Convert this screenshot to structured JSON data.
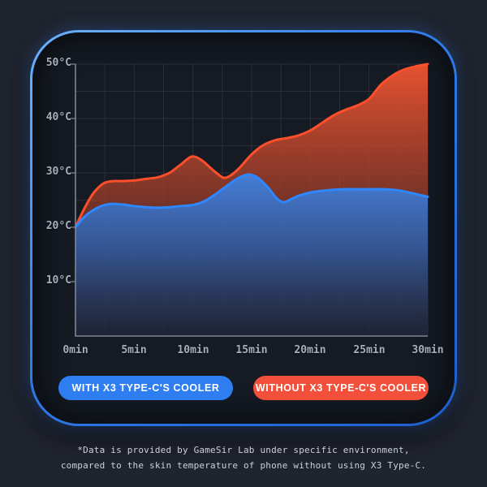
{
  "panel": {
    "border_color": "#2f7ce9",
    "background": "#151a23",
    "page_background": "#20242e"
  },
  "chart_data": {
    "type": "area",
    "title": "",
    "x_axis": {
      "unit": "min",
      "min": 0,
      "max": 30,
      "tick_labels": [
        "0min",
        "5min",
        "10min",
        "15min",
        "20min",
        "25min",
        "30min"
      ],
      "minor_step": 2.5
    },
    "y_axis": {
      "unit": "°C",
      "min": 0,
      "max": 50,
      "tick_labels": [
        "50°C",
        "40°C",
        "30°C",
        "20°C",
        "10°C"
      ],
      "minor_step": 5
    },
    "grid": "on",
    "legend_position": "bottom",
    "series": [
      {
        "name": "WITHOUT X3 TYPE-C'S COOLER",
        "line_color": "#ff4e2b",
        "fill_stops": [
          "rgba(240,84,48,0.96)",
          "rgba(158,62,42,0.72)",
          "rgba(70,34,30,0.45)"
        ],
        "points": [
          [
            0,
            20
          ],
          [
            0.7,
            23.2
          ],
          [
            1.4,
            25.9
          ],
          [
            2,
            27.4
          ],
          [
            2.5,
            28.2
          ],
          [
            3.2,
            28.5
          ],
          [
            4,
            28.5
          ],
          [
            5,
            28.6
          ],
          [
            6,
            28.9
          ],
          [
            7,
            29.2
          ],
          [
            8,
            30
          ],
          [
            9,
            31.6
          ],
          [
            9.9,
            33
          ],
          [
            10.7,
            32.4
          ],
          [
            11.4,
            31.1
          ],
          [
            12,
            30
          ],
          [
            12.6,
            29.1
          ],
          [
            13.2,
            29.5
          ],
          [
            14,
            31
          ],
          [
            15,
            33.4
          ],
          [
            16,
            35.1
          ],
          [
            17,
            36
          ],
          [
            18,
            36.4
          ],
          [
            19,
            36.9
          ],
          [
            20,
            37.8
          ],
          [
            21,
            39.2
          ],
          [
            22,
            40.6
          ],
          [
            23,
            41.6
          ],
          [
            24,
            42.4
          ],
          [
            25,
            43.6
          ],
          [
            26,
            46.2
          ],
          [
            27,
            47.9
          ],
          [
            28,
            49
          ],
          [
            29,
            49.6
          ],
          [
            30,
            50
          ]
        ]
      },
      {
        "name": "WITH X3 TYPE-C'S COOLER",
        "line_color": "#2e87ff",
        "fill_stops": [
          "rgba(66,130,226,0.96)",
          "rgba(44,92,164,0.82)",
          "rgba(22,38,64,0.6)"
        ],
        "points": [
          [
            0,
            20
          ],
          [
            0.7,
            21.8
          ],
          [
            1.4,
            23
          ],
          [
            2.2,
            23.9
          ],
          [
            3,
            24.3
          ],
          [
            4,
            24.2
          ],
          [
            5,
            23.9
          ],
          [
            6,
            23.7
          ],
          [
            7,
            23.6
          ],
          [
            8,
            23.7
          ],
          [
            9,
            23.9
          ],
          [
            10,
            24.1
          ],
          [
            11,
            24.8
          ],
          [
            12,
            26.2
          ],
          [
            13,
            27.8
          ],
          [
            14,
            29.2
          ],
          [
            14.8,
            29.7
          ],
          [
            15.6,
            29
          ],
          [
            16.4,
            27.3
          ],
          [
            17.1,
            25.4
          ],
          [
            17.7,
            24.6
          ],
          [
            18.3,
            25.1
          ],
          [
            19,
            25.8
          ],
          [
            20,
            26.4
          ],
          [
            21,
            26.7
          ],
          [
            22,
            26.9
          ],
          [
            23,
            27
          ],
          [
            24,
            27
          ],
          [
            25,
            27
          ],
          [
            26,
            27
          ],
          [
            27,
            26.9
          ],
          [
            28,
            26.6
          ],
          [
            29,
            26.1
          ],
          [
            30,
            25.6
          ]
        ]
      }
    ],
    "grid_color": "rgba(173,181,194,0.14)",
    "axis_color": "#7e8694"
  },
  "legend": [
    {
      "label": "WITH X3 TYPE-C'S COOLER",
      "color": "#2e7ef2"
    },
    {
      "label": "WITHOUT X3 TYPE-C'S COOLER",
      "color": "#f2503a"
    }
  ],
  "footnote": {
    "line1": "*Data is provided by GameSir Lab under specific environment,",
    "line2": "compared to the skin temperature of phone without using X3 Type-C."
  }
}
